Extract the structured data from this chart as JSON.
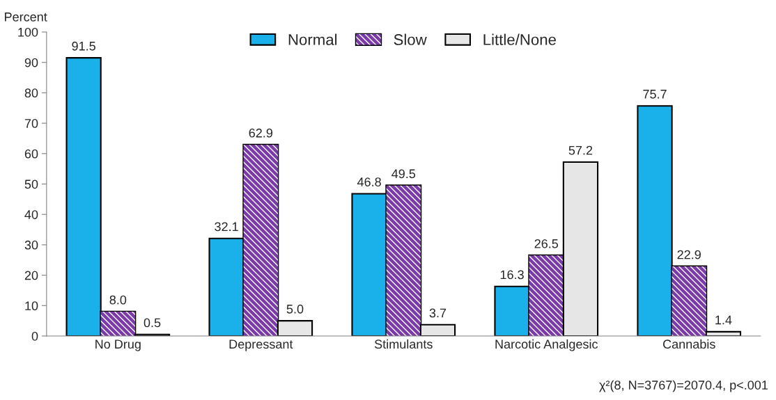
{
  "chart_data": {
    "type": "bar",
    "ylabel": "Percent",
    "categories": [
      "No Drug",
      "Depressant",
      "Stimulants",
      "Narcotic Analgesic",
      "Cannabis"
    ],
    "series": [
      {
        "name": "Normal",
        "color": "#1ab0ea",
        "values": [
          91.5,
          32.1,
          46.8,
          16.3,
          75.7
        ],
        "value_labels": [
          "91.5",
          "32.1",
          "46.8",
          "16.3",
          "75.7"
        ]
      },
      {
        "name": "Slow",
        "color": "#7a3aa8",
        "values": [
          8.0,
          62.9,
          49.5,
          26.5,
          22.9
        ],
        "value_labels": [
          "8.0",
          "62.9",
          "49.5",
          "26.5",
          "22.9"
        ]
      },
      {
        "name": "Little/None",
        "color": "#e6e6e6",
        "values": [
          0.5,
          5.0,
          3.7,
          57.2,
          1.4
        ],
        "value_labels": [
          "0.5",
          "5.0",
          "3.7",
          "57.2",
          "1.4"
        ]
      }
    ],
    "ylim": [
      0,
      100
    ],
    "yticks": [
      0,
      10,
      20,
      30,
      40,
      50,
      60,
      70,
      80,
      90,
      100
    ],
    "grid": false,
    "legend": "top",
    "annotations": [
      "χ²(8, N=3767)=2070.4, p<.001"
    ]
  }
}
